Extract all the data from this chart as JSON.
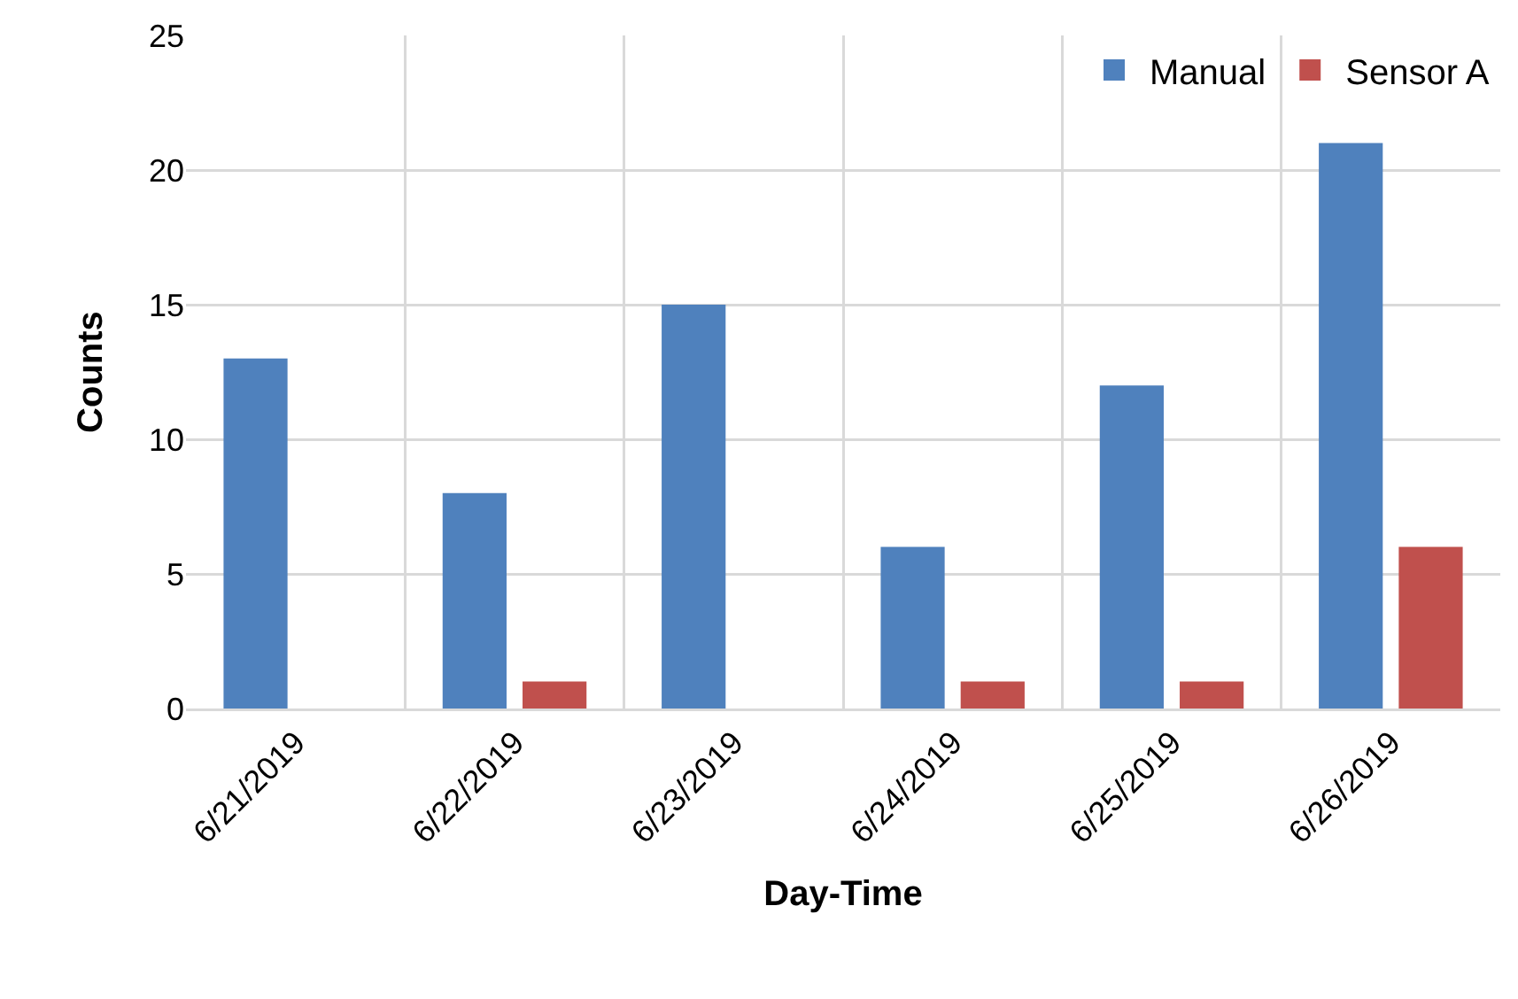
{
  "chart_data": {
    "type": "bar",
    "xlabel": "Day-Time",
    "ylabel": "Counts",
    "categories": [
      "6/21/2019",
      "6/22/2019",
      "6/23/2019",
      "6/24/2019",
      "6/25/2019",
      "6/26/2019"
    ],
    "series": [
      {
        "name": "Manual",
        "color": "#4f81bd",
        "values": [
          13,
          8,
          15,
          6,
          12,
          21
        ]
      },
      {
        "name": "Sensor A",
        "color": "#c0504d",
        "values": [
          0,
          1,
          0,
          1,
          1,
          6
        ]
      }
    ],
    "ylim": [
      0,
      25
    ],
    "yticks": [
      0,
      5,
      10,
      15,
      20,
      25
    ],
    "grid": true,
    "legend": "top right"
  }
}
